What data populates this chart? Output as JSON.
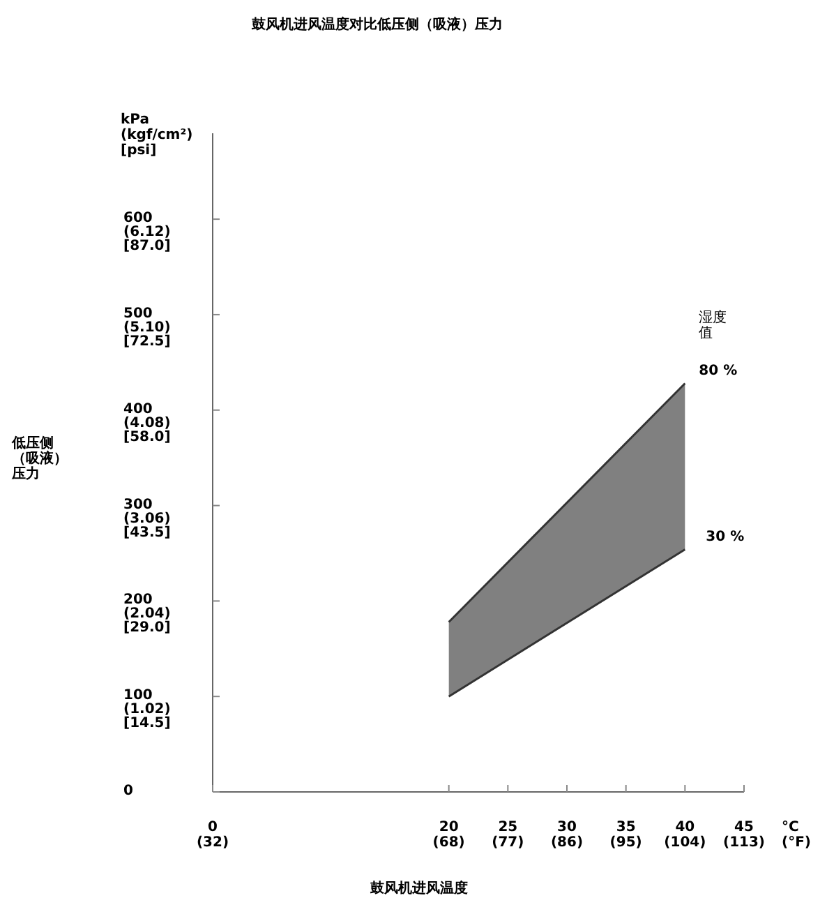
{
  "chart_data": {
    "type": "line",
    "title": "鼓风机进风温度对比低压侧（吸液）压力",
    "xlabel": "鼓风机进风温度",
    "ylabel": "低压侧（吸液）压力",
    "legend_title": "湿度值",
    "annotations": [
      "kPa\n(kgf/cm²)\n[psi]",
      "°C\n(°F)"
    ],
    "x": [
      20,
      40
    ],
    "series": [
      {
        "name": "80 %",
        "type": "area",
        "color": "#808080",
        "values": [
          178,
          428
        ]
      },
      {
        "name": "30 %",
        "color": "#333333",
        "values": [
          100,
          254
        ]
      }
    ],
    "xlim": [
      0,
      45
    ],
    "xticks": [
      0,
      20,
      25,
      30,
      35,
      40,
      45
    ],
    "x2lim": [
      32,
      113
    ],
    "x2ticks": [
      {
        "value": 32,
        "label": "(32)"
      },
      {
        "value": 68,
        "label": "(68)"
      },
      {
        "value": 77,
        "label": "(77)"
      },
      {
        "value": 86,
        "label": "(86)"
      },
      {
        "value": 95,
        "label": "(95)"
      },
      {
        "value": 104,
        "label": "(104)"
      },
      {
        "value": 113,
        "label": "(113)"
      }
    ],
    "ylim": [
      0,
      690
    ],
    "yticks": [
      0,
      100,
      200,
      300,
      400,
      500,
      600
    ],
    "y2lim": [
      0,
      6.12
    ],
    "y2ticks": [
      {
        "value": 1.02,
        "label": "(1.02)"
      },
      {
        "value": 2.04,
        "label": "(2.04)"
      },
      {
        "value": 3.06,
        "label": "(3.06)"
      },
      {
        "value": 4.08,
        "label": "(4.08)"
      },
      {
        "value": 5.1,
        "label": "(5.10)"
      },
      {
        "value": 6.12,
        "label": "(6.12)"
      }
    ],
    "y3lim": [
      0,
      87
    ],
    "y3ticks": [
      {
        "value": 14.5,
        "label": "[14.5]"
      },
      {
        "value": 29,
        "label": "[29.0]"
      },
      {
        "value": 43.5,
        "label": "[43.5]"
      },
      {
        "value": 58,
        "label": "[58.0]"
      },
      {
        "value": 72.5,
        "label": "[72.5]"
      },
      {
        "value": 87,
        "label": "[87.0]"
      }
    ],
    "grid": false,
    "legend": "right",
    "line_style": "solid",
    "marker": "none"
  }
}
